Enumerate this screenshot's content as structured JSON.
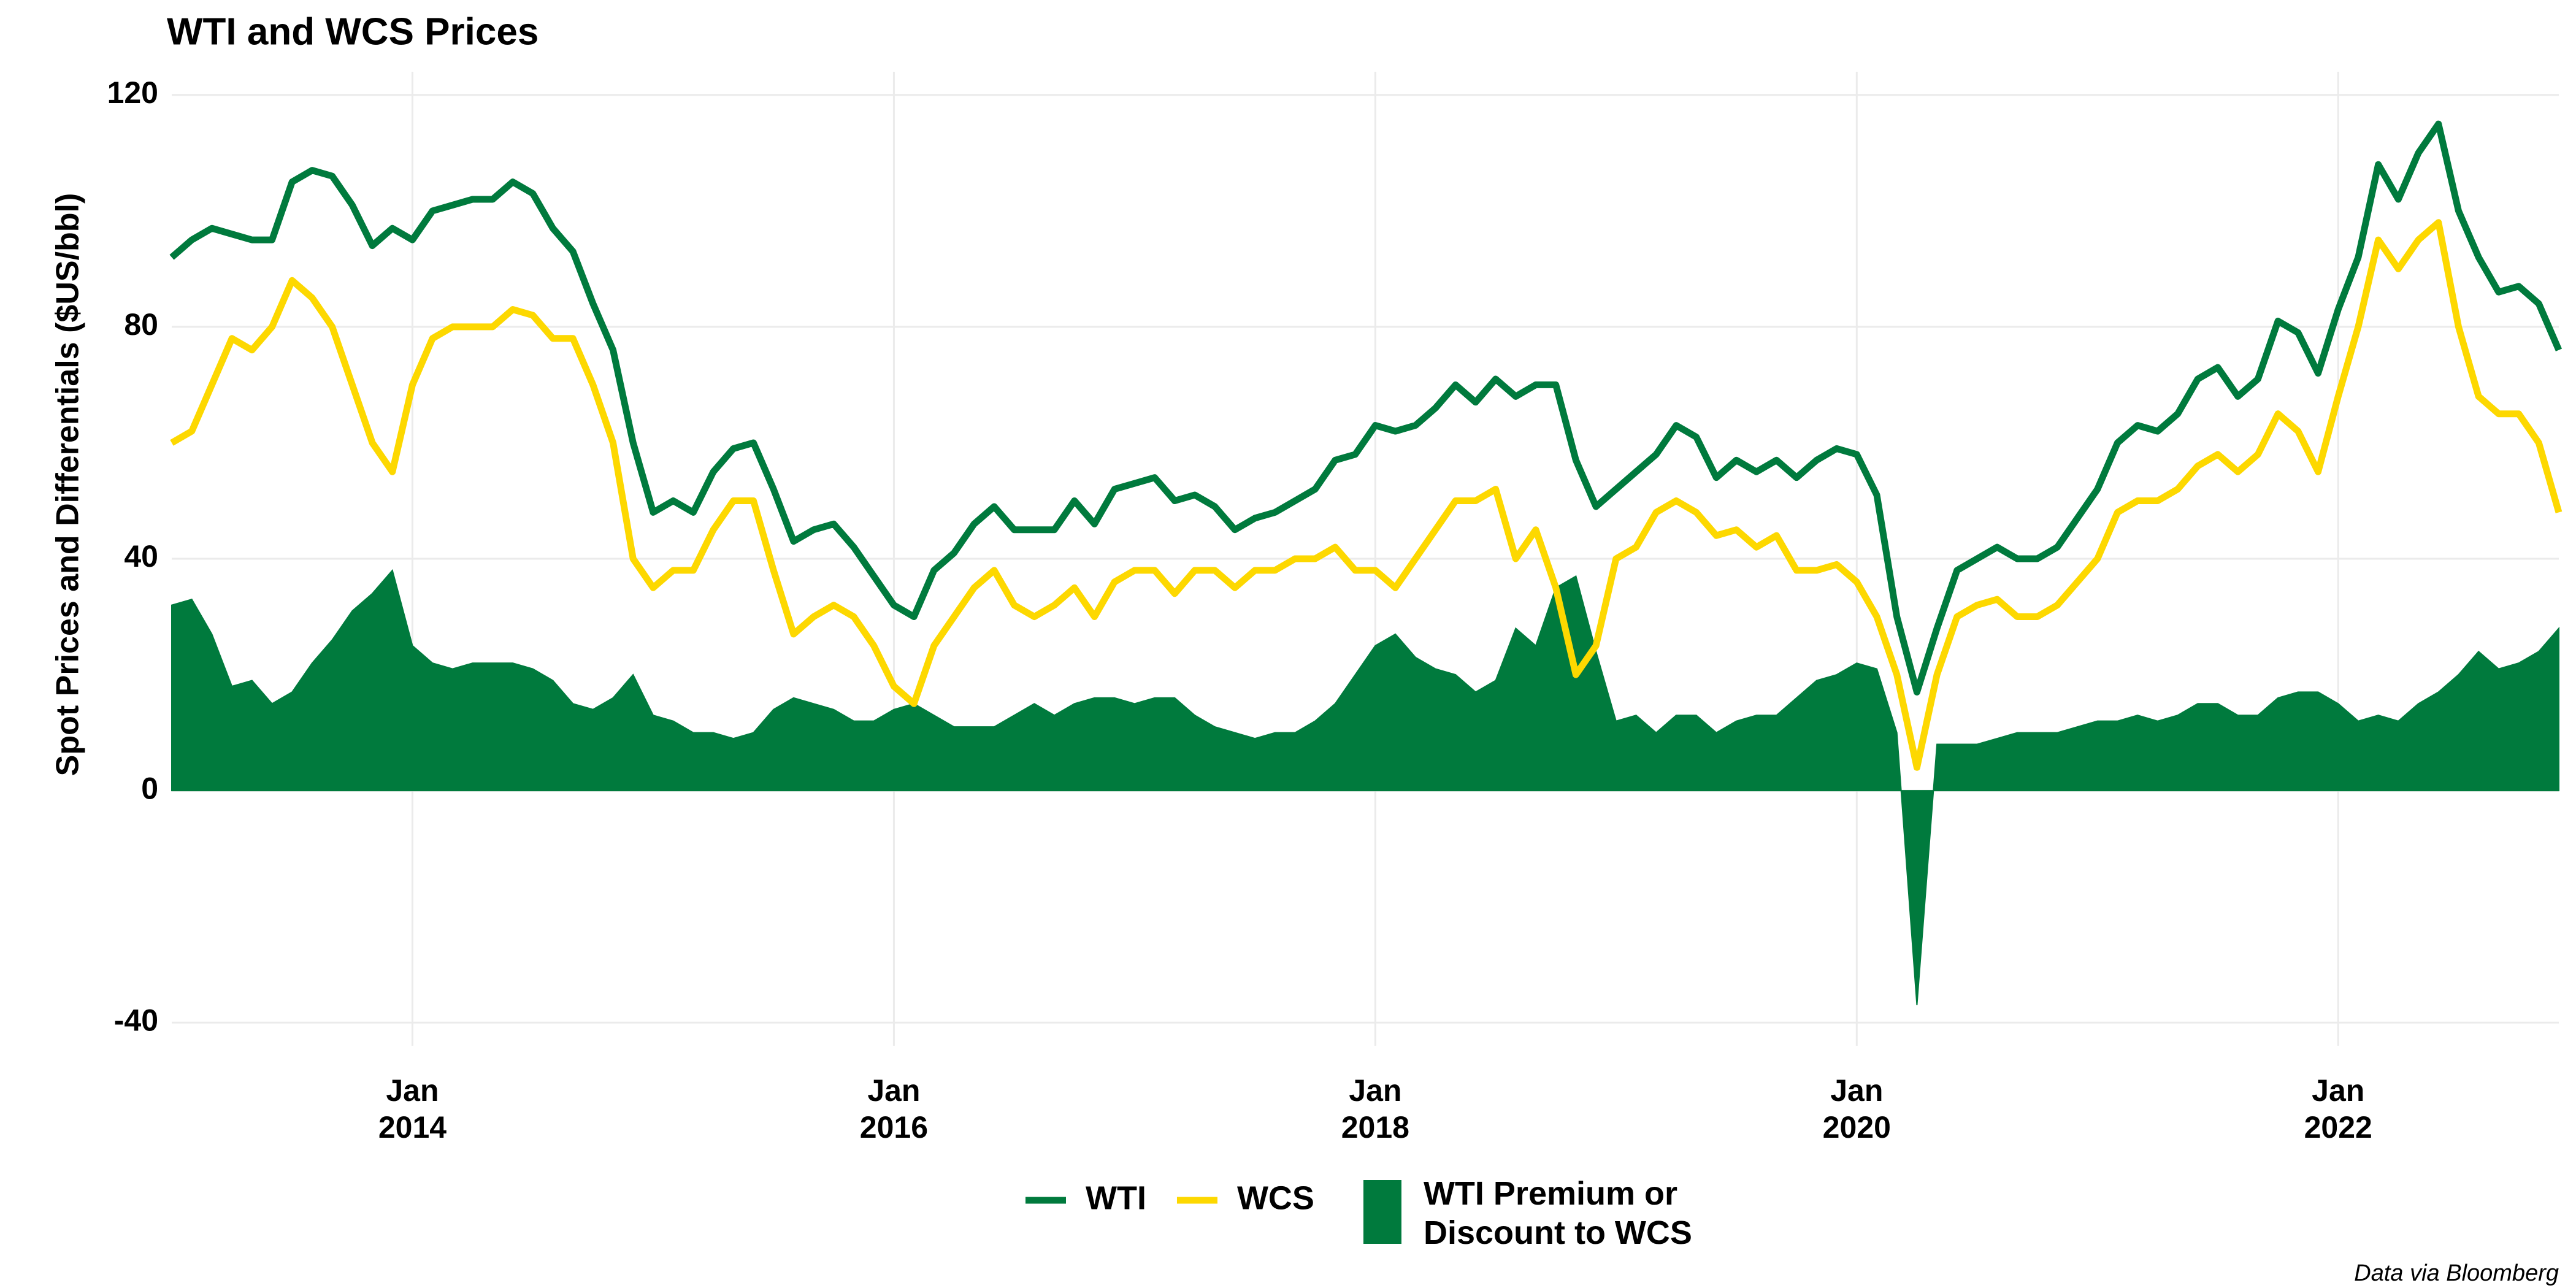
{
  "chart_data": {
    "type": "line",
    "title": "WTI and WCS Prices",
    "y_label": "Spot Prices and Differentials ($US/bbl)",
    "caption": "Data via Bloomberg",
    "x": [
      "2013-01",
      "2013-02",
      "2013-03",
      "2013-04",
      "2013-05",
      "2013-06",
      "2013-07",
      "2013-08",
      "2013-09",
      "2013-10",
      "2013-11",
      "2013-12",
      "2014-01",
      "2014-02",
      "2014-03",
      "2014-04",
      "2014-05",
      "2014-06",
      "2014-07",
      "2014-08",
      "2014-09",
      "2014-10",
      "2014-11",
      "2014-12",
      "2015-01",
      "2015-02",
      "2015-03",
      "2015-04",
      "2015-05",
      "2015-06",
      "2015-07",
      "2015-08",
      "2015-09",
      "2015-10",
      "2015-11",
      "2015-12",
      "2016-01",
      "2016-02",
      "2016-03",
      "2016-04",
      "2016-05",
      "2016-06",
      "2016-07",
      "2016-08",
      "2016-09",
      "2016-10",
      "2016-11",
      "2016-12",
      "2017-01",
      "2017-02",
      "2017-03",
      "2017-04",
      "2017-05",
      "2017-06",
      "2017-07",
      "2017-08",
      "2017-09",
      "2017-10",
      "2017-11",
      "2017-12",
      "2018-01",
      "2018-02",
      "2018-03",
      "2018-04",
      "2018-05",
      "2018-06",
      "2018-07",
      "2018-08",
      "2018-09",
      "2018-10",
      "2018-11",
      "2018-12",
      "2019-01",
      "2019-02",
      "2019-03",
      "2019-04",
      "2019-05",
      "2019-06",
      "2019-07",
      "2019-08",
      "2019-09",
      "2019-10",
      "2019-11",
      "2019-12",
      "2020-01",
      "2020-02",
      "2020-03",
      "2020-04",
      "2020-05",
      "2020-06",
      "2020-07",
      "2020-08",
      "2020-09",
      "2020-10",
      "2020-11",
      "2020-12",
      "2021-01",
      "2021-02",
      "2021-03",
      "2021-04",
      "2021-05",
      "2021-06",
      "2021-07",
      "2021-08",
      "2021-09",
      "2021-10",
      "2021-11",
      "2021-12",
      "2022-01",
      "2022-02",
      "2022-03",
      "2022-04",
      "2022-05",
      "2022-06",
      "2022-07",
      "2022-08",
      "2022-09",
      "2022-10",
      "2022-11",
      "2022-12"
    ],
    "series": [
      {
        "name": "WTI Premium or\nDiscount to WCS",
        "color": "#007a3d",
        "kind": "area",
        "values": [
          32,
          33,
          27,
          18,
          19,
          15,
          17,
          22,
          26,
          31,
          34,
          38,
          25,
          22,
          21,
          22,
          22,
          22,
          21,
          19,
          15,
          14,
          16,
          20,
          13,
          12,
          10,
          10,
          9,
          10,
          14,
          16,
          15,
          14,
          12,
          12,
          14,
          15,
          13,
          11,
          11,
          11,
          13,
          15,
          13,
          15,
          16,
          16,
          15,
          16,
          16,
          13,
          11,
          10,
          9,
          10,
          10,
          12,
          15,
          20,
          25,
          27,
          23,
          21,
          20,
          17,
          19,
          28,
          25,
          35,
          37,
          24,
          12,
          13,
          10,
          13,
          13,
          10,
          12,
          13,
          13,
          16,
          19,
          20,
          22,
          21,
          10,
          -37,
          8,
          8,
          8,
          9,
          10,
          10,
          10,
          11,
          12,
          12,
          13,
          12,
          13,
          15,
          15,
          13,
          13,
          16,
          17,
          17,
          15,
          12,
          13,
          12,
          15,
          17,
          20,
          24,
          21,
          22,
          24,
          28
        ]
      },
      {
        "name": "WTI",
        "color": "#007a3d",
        "kind": "line",
        "values": [
          92,
          95,
          97,
          96,
          95,
          95,
          105,
          107,
          106,
          101,
          94,
          97,
          95,
          100,
          101,
          102,
          102,
          105,
          103,
          97,
          93,
          84,
          76,
          60,
          48,
          50,
          48,
          55,
          59,
          60,
          52,
          43,
          45,
          46,
          42,
          37,
          32,
          30,
          38,
          41,
          46,
          49,
          45,
          45,
          45,
          50,
          46,
          52,
          53,
          54,
          50,
          51,
          49,
          45,
          47,
          48,
          50,
          52,
          57,
          58,
          63,
          62,
          63,
          66,
          70,
          67,
          71,
          68,
          70,
          70,
          57,
          49,
          52,
          55,
          58,
          63,
          61,
          54,
          57,
          55,
          57,
          54,
          57,
          59,
          58,
          51,
          30,
          17,
          28,
          38,
          40,
          42,
          40,
          40,
          42,
          47,
          52,
          60,
          63,
          62,
          65,
          71,
          73,
          68,
          71,
          81,
          79,
          72,
          83,
          92,
          108,
          102,
          110,
          115,
          100,
          92,
          86,
          87,
          84,
          76
        ]
      },
      {
        "name": "WCS",
        "color": "#fdd800",
        "kind": "line",
        "values": [
          60,
          62,
          70,
          78,
          76,
          80,
          88,
          85,
          80,
          70,
          60,
          55,
          70,
          78,
          80,
          80,
          80,
          83,
          82,
          78,
          78,
          70,
          60,
          40,
          35,
          38,
          38,
          45,
          50,
          50,
          38,
          27,
          30,
          32,
          30,
          25,
          18,
          15,
          25,
          30,
          35,
          38,
          32,
          30,
          32,
          35,
          30,
          36,
          38,
          38,
          34,
          38,
          38,
          35,
          38,
          38,
          40,
          40,
          42,
          38,
          38,
          35,
          40,
          45,
          50,
          50,
          52,
          40,
          45,
          35,
          20,
          25,
          40,
          42,
          48,
          50,
          48,
          44,
          45,
          42,
          44,
          38,
          38,
          39,
          36,
          30,
          20,
          4,
          20,
          30,
          32,
          33,
          30,
          30,
          32,
          36,
          40,
          48,
          50,
          50,
          52,
          56,
          58,
          55,
          58,
          65,
          62,
          55,
          68,
          80,
          95,
          90,
          95,
          98,
          80,
          68,
          65,
          65,
          60,
          48
        ]
      }
    ],
    "xlim": [
      "2013-01",
      "2022-12"
    ],
    "xticks": [
      {
        "value": "2014-01",
        "label": "Jan\n2014"
      },
      {
        "value": "2016-01",
        "label": "Jan\n2016"
      },
      {
        "value": "2018-01",
        "label": "Jan\n2018"
      },
      {
        "value": "2020-01",
        "label": "Jan\n2020"
      },
      {
        "value": "2022-01",
        "label": "Jan\n2022"
      }
    ],
    "ylim": [
      -44,
      124
    ],
    "yticks": [
      -40,
      0,
      40,
      80,
      120
    ],
    "grid": true,
    "legend": "bottom"
  }
}
